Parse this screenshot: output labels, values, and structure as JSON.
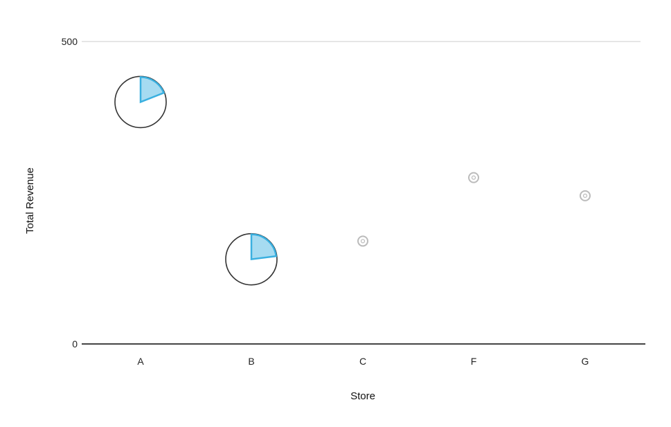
{
  "chart_data": {
    "type": "scatter",
    "title": "",
    "xlabel": "Store",
    "ylabel": "Total Revenue",
    "ylim": [
      0,
      500
    ],
    "y_ticks": [
      "0",
      "500"
    ],
    "categories": [
      "A",
      "B",
      "C",
      "F",
      "G"
    ],
    "values": [
      400,
      140,
      170,
      275,
      245
    ],
    "marker_style": [
      "pie-circle",
      "pie-circle",
      "small-circle",
      "small-circle",
      "small-circle"
    ],
    "pie_fraction": [
      0.19,
      0.23,
      null,
      null,
      null
    ],
    "grid": false,
    "colors": {
      "pie_fill": "#3ab0e0",
      "outline": "#333333",
      "small_marker": "#bbbbbb",
      "axis": "#444444",
      "top_gridline": "#e6e6e6"
    }
  }
}
